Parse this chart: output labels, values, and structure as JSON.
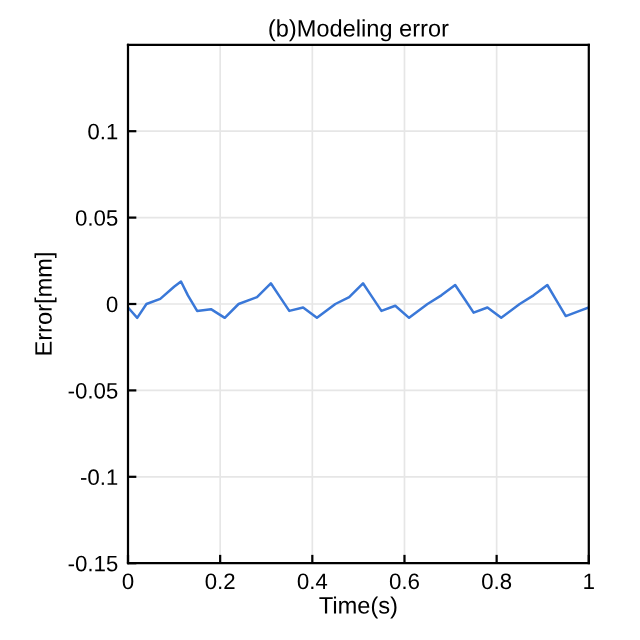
{
  "chart_data": {
    "type": "line",
    "title": "(b)Modeling error",
    "xlabel": "Time(s)",
    "ylabel": "Error[mm]",
    "xlim": [
      0,
      1
    ],
    "xticks": [
      0,
      0.2,
      0.4,
      0.6,
      0.8,
      1
    ],
    "ylim": [
      -0.15,
      0.15
    ],
    "yticks": [
      -0.15,
      -0.1,
      -0.05,
      0,
      0.05,
      0.1
    ],
    "grid": true,
    "series": [
      {
        "color": "#3a78d8",
        "x": [
          0,
          0.02,
          0.04,
          0.07,
          0.1,
          0.115,
          0.13,
          0.15,
          0.18,
          0.21,
          0.24,
          0.28,
          0.31,
          0.33,
          0.35,
          0.38,
          0.41,
          0.45,
          0.48,
          0.51,
          0.53,
          0.55,
          0.58,
          0.61,
          0.65,
          0.68,
          0.71,
          0.73,
          0.75,
          0.78,
          0.81,
          0.85,
          0.88,
          0.91,
          0.93,
          0.95,
          0.98,
          1.0
        ],
        "values": [
          -0.002,
          -0.008,
          0,
          0.003,
          0.01,
          0.013,
          0.005,
          -0.004,
          -0.003,
          -0.008,
          0,
          0.004,
          0.012,
          0.004,
          -0.004,
          -0.002,
          -0.008,
          0,
          0.004,
          0.012,
          0.004,
          -0.004,
          -0.001,
          -0.008,
          0,
          0.005,
          0.011,
          0.003,
          -0.005,
          -0.002,
          -0.008,
          0,
          0.005,
          0.011,
          0.002,
          -0.007,
          -0.004,
          -0.002
        ]
      }
    ]
  }
}
